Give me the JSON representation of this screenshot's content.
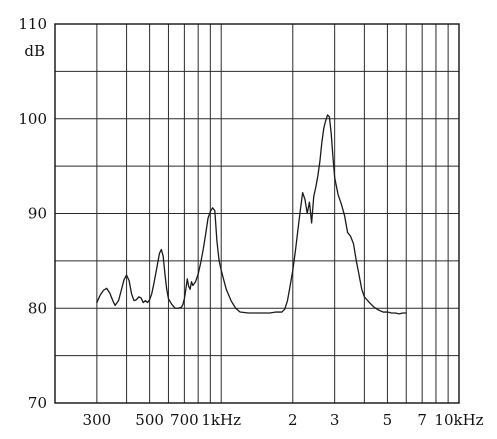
{
  "chart_data": {
    "type": "line",
    "title": "",
    "xlabel": "",
    "ylabel": "dB",
    "x_scale": "log",
    "xlim": [
      200,
      10000
    ],
    "ylim": [
      70,
      110
    ],
    "grid": true,
    "x_gridlines": [
      200,
      300,
      400,
      500,
      600,
      700,
      800,
      900,
      1000,
      2000,
      3000,
      4000,
      5000,
      6000,
      7000,
      8000,
      9000,
      10000
    ],
    "x_ticks": [
      {
        "value": 300,
        "label": "300"
      },
      {
        "value": 500,
        "label": "500"
      },
      {
        "value": 700,
        "label": "700"
      },
      {
        "value": 1000,
        "label": "1kHz"
      },
      {
        "value": 2000,
        "label": "2"
      },
      {
        "value": 3000,
        "label": "3"
      },
      {
        "value": 5000,
        "label": "5"
      },
      {
        "value": 7000,
        "label": "7"
      },
      {
        "value": 10000,
        "label": "10kHz"
      }
    ],
    "y_gridlines": [
      70,
      75,
      80,
      85,
      90,
      95,
      100,
      105,
      110
    ],
    "y_ticks": [
      {
        "value": 70,
        "label": "70"
      },
      {
        "value": 80,
        "label": "80"
      },
      {
        "value": 90,
        "label": "90"
      },
      {
        "value": 100,
        "label": "100"
      },
      {
        "value": 110,
        "label": "110"
      }
    ],
    "series": [
      {
        "color": "#1a1a1a",
        "points": [
          [
            300,
            80.6
          ],
          [
            310,
            81.4
          ],
          [
            320,
            81.9
          ],
          [
            330,
            82.1
          ],
          [
            340,
            81.6
          ],
          [
            350,
            80.8
          ],
          [
            358,
            80.3
          ],
          [
            370,
            80.8
          ],
          [
            380,
            81.9
          ],
          [
            390,
            83.0
          ],
          [
            400,
            83.5
          ],
          [
            410,
            82.9
          ],
          [
            420,
            81.5
          ],
          [
            430,
            80.8
          ],
          [
            440,
            80.9
          ],
          [
            450,
            81.2
          ],
          [
            460,
            81.1
          ],
          [
            470,
            80.6
          ],
          [
            480,
            80.8
          ],
          [
            490,
            80.6
          ],
          [
            500,
            80.9
          ],
          [
            510,
            81.5
          ],
          [
            520,
            82.5
          ],
          [
            530,
            83.6
          ],
          [
            540,
            84.7
          ],
          [
            550,
            85.8
          ],
          [
            560,
            86.2
          ],
          [
            570,
            85.5
          ],
          [
            580,
            83.6
          ],
          [
            590,
            82.0
          ],
          [
            600,
            81.0
          ],
          [
            620,
            80.4
          ],
          [
            640,
            80.0
          ],
          [
            660,
            80.0
          ],
          [
            680,
            80.1
          ],
          [
            690,
            80.4
          ],
          [
            700,
            81.0
          ],
          [
            710,
            82.0
          ],
          [
            720,
            83.1
          ],
          [
            730,
            82.3
          ],
          [
            740,
            82.0
          ],
          [
            750,
            82.8
          ],
          [
            760,
            82.4
          ],
          [
            780,
            82.8
          ],
          [
            800,
            83.6
          ],
          [
            820,
            84.8
          ],
          [
            840,
            86.2
          ],
          [
            860,
            87.8
          ],
          [
            880,
            89.5
          ],
          [
            900,
            90.2
          ],
          [
            920,
            90.6
          ],
          [
            940,
            90.3
          ],
          [
            960,
            87.0
          ],
          [
            980,
            85.0
          ],
          [
            1000,
            84.0
          ],
          [
            1050,
            82.0
          ],
          [
            1100,
            80.8
          ],
          [
            1150,
            80.0
          ],
          [
            1200,
            79.6
          ],
          [
            1300,
            79.5
          ],
          [
            1400,
            79.5
          ],
          [
            1500,
            79.5
          ],
          [
            1600,
            79.5
          ],
          [
            1700,
            79.6
          ],
          [
            1800,
            79.6
          ],
          [
            1850,
            79.9
          ],
          [
            1900,
            80.8
          ],
          [
            1950,
            82.4
          ],
          [
            2000,
            84.0
          ],
          [
            2050,
            86.0
          ],
          [
            2100,
            88.2
          ],
          [
            2150,
            90.3
          ],
          [
            2200,
            92.2
          ],
          [
            2250,
            91.5
          ],
          [
            2300,
            90.0
          ],
          [
            2350,
            91.2
          ],
          [
            2400,
            89.0
          ],
          [
            2450,
            91.8
          ],
          [
            2500,
            92.8
          ],
          [
            2550,
            94.0
          ],
          [
            2600,
            95.5
          ],
          [
            2650,
            97.5
          ],
          [
            2700,
            99.0
          ],
          [
            2750,
            99.8
          ],
          [
            2800,
            100.4
          ],
          [
            2850,
            100.2
          ],
          [
            2900,
            98.5
          ],
          [
            2950,
            96.0
          ],
          [
            3000,
            93.8
          ],
          [
            3100,
            92.0
          ],
          [
            3200,
            91.0
          ],
          [
            3300,
            89.8
          ],
          [
            3400,
            88.0
          ],
          [
            3500,
            87.6
          ],
          [
            3600,
            86.8
          ],
          [
            3700,
            85.0
          ],
          [
            3800,
            83.5
          ],
          [
            3900,
            82.0
          ],
          [
            4000,
            81.2
          ],
          [
            4200,
            80.6
          ],
          [
            4400,
            80.1
          ],
          [
            4600,
            79.8
          ],
          [
            4800,
            79.6
          ],
          [
            5000,
            79.6
          ],
          [
            5200,
            79.5
          ],
          [
            5400,
            79.5
          ],
          [
            5600,
            79.4
          ],
          [
            5800,
            79.5
          ],
          [
            6000,
            79.5
          ]
        ]
      }
    ]
  }
}
